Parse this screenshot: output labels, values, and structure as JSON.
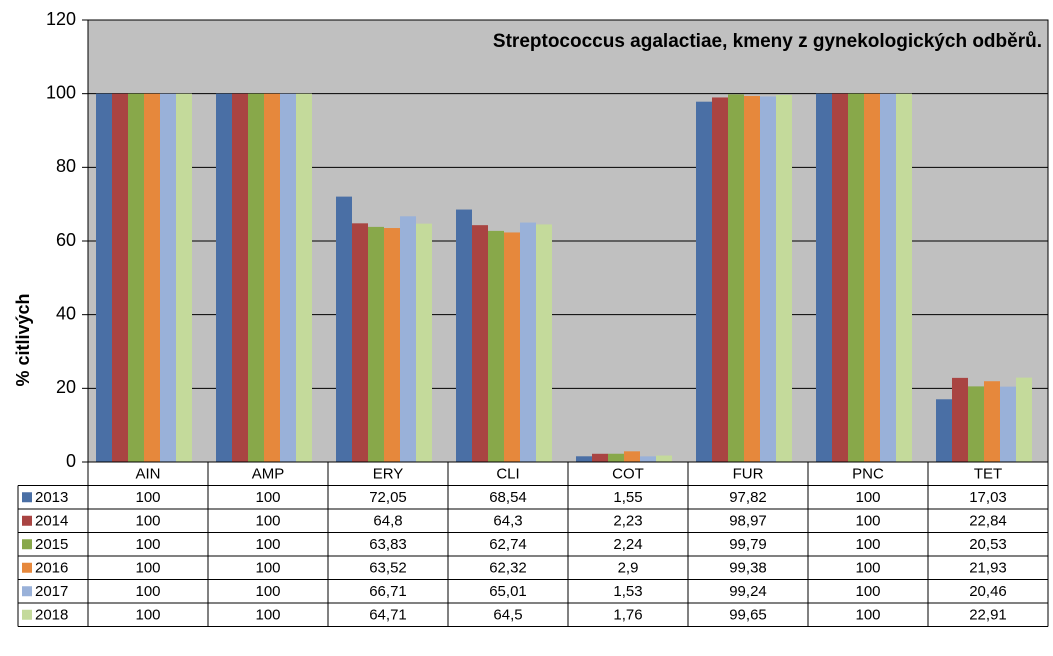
{
  "chart_data": {
    "type": "bar",
    "title": "Streptococcus agalactiae, kmeny z gynekologických odběrů.",
    "y_label": "% citlivých",
    "categories": [
      "AIN",
      "AMP",
      "ERY",
      "CLI",
      "COT",
      "FUR",
      "PNC",
      "TET"
    ],
    "series": [
      {
        "name": "2013",
        "color": "#4a6fa5",
        "values": [
          100,
          100,
          72.05,
          68.54,
          1.55,
          97.82,
          100,
          17.03
        ],
        "value_labels": [
          "100",
          "100",
          "72,05",
          "68,54",
          "1,55",
          "97,82",
          "100",
          "17,03"
        ]
      },
      {
        "name": "2014",
        "color": "#a94442",
        "values": [
          100,
          100,
          64.8,
          64.3,
          2.23,
          98.97,
          100,
          22.84
        ],
        "value_labels": [
          "100",
          "100",
          "64,8",
          "64,3",
          "2,23",
          "98,97",
          "100",
          "22,84"
        ]
      },
      {
        "name": "2015",
        "color": "#88a84a",
        "values": [
          100,
          100,
          63.83,
          62.74,
          2.24,
          99.79,
          100,
          20.53
        ],
        "value_labels": [
          "100",
          "100",
          "63,83",
          "62,74",
          "2,24",
          "99,79",
          "100",
          "20,53"
        ]
      },
      {
        "name": "2016",
        "color": "#e6883c",
        "values": [
          100,
          100,
          63.52,
          62.32,
          2.9,
          99.38,
          100,
          21.93
        ],
        "value_labels": [
          "100",
          "100",
          "63,52",
          "62,32",
          "2,9",
          "99,38",
          "100",
          "21,93"
        ]
      },
      {
        "name": "2017",
        "color": "#99b1d9",
        "values": [
          100,
          100,
          66.71,
          65.01,
          1.53,
          99.24,
          100,
          20.46
        ],
        "value_labels": [
          "100",
          "100",
          "66,71",
          "65,01",
          "1,53",
          "99,24",
          "100",
          "20,46"
        ]
      },
      {
        "name": "2018",
        "color": "#c4da9b",
        "values": [
          100,
          100,
          64.71,
          64.5,
          1.76,
          99.65,
          100,
          22.91
        ],
        "value_labels": [
          "100",
          "100",
          "64,71",
          "64,5",
          "1,76",
          "99,65",
          "100",
          "22,91"
        ]
      }
    ],
    "ylim": [
      0,
      120
    ],
    "yticks": [
      0,
      20,
      40,
      60,
      80,
      100,
      120
    ],
    "grid": true
  }
}
